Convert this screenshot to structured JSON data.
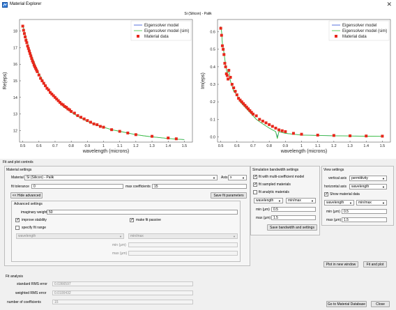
{
  "window": {
    "title": "Material Explorer",
    "close_glyph": "✕",
    "icon": "app-icon"
  },
  "figure": {
    "suptitle": "Si (Silicon) - Palik"
  },
  "chart_data": [
    {
      "type": "line",
      "title": "",
      "xlabel": "wavelength (microns)",
      "ylabel": "Re(eps)",
      "xlim": [
        0.48,
        1.55
      ],
      "ylim": [
        11.3,
        18.7
      ],
      "xticks": [
        "0.5",
        "0.6",
        "0.7",
        "0.8",
        "0.9",
        "1",
        "1.1",
        "1.2",
        "1.3",
        "1.4",
        "1.5"
      ],
      "yticks": [
        "12",
        "13",
        "14",
        "15",
        "16",
        "17",
        "18"
      ],
      "legend": [
        "Eigensolver model",
        "Eigensolver model (sim)",
        "Material data"
      ],
      "legend_position": "top-right",
      "series": [
        {
          "name": "Eigensolver model",
          "color": "#2a4fd6",
          "x": [
            0.5,
            0.52,
            0.54,
            0.56,
            0.58,
            0.6,
            0.63,
            0.66,
            0.7,
            0.75,
            0.8,
            0.85,
            0.9,
            0.95,
            1,
            1.05,
            1.1,
            1.15,
            1.2,
            1.25,
            1.3,
            1.35,
            1.4,
            1.45,
            1.5
          ],
          "y": [
            18.35,
            17.6,
            16.95,
            16.4,
            15.9,
            15.45,
            14.9,
            14.45,
            13.95,
            13.45,
            13.1,
            12.8,
            12.55,
            12.35,
            12.2,
            12.05,
            11.95,
            11.85,
            11.75,
            11.68,
            11.62,
            11.57,
            11.52,
            11.48,
            11.45
          ]
        },
        {
          "name": "Eigensolver model (sim)",
          "color": "#3fc43f",
          "x": [
            0.5,
            0.52,
            0.54,
            0.56,
            0.58,
            0.6,
            0.63,
            0.66,
            0.7,
            0.75,
            0.8,
            0.85,
            0.9,
            0.95,
            1,
            1.05,
            1.1,
            1.15,
            1.2,
            1.25,
            1.3,
            1.35,
            1.4,
            1.45,
            1.5
          ],
          "y": [
            18.35,
            17.6,
            16.95,
            16.4,
            15.9,
            15.45,
            14.9,
            14.45,
            13.95,
            13.45,
            13.1,
            12.8,
            12.55,
            12.35,
            12.2,
            12.05,
            11.95,
            11.85,
            11.75,
            11.68,
            11.62,
            11.57,
            11.52,
            11.48,
            11.45
          ]
        },
        {
          "name": "Material data",
          "color": "#e8271b",
          "marker": "square",
          "x": [
            0.5,
            0.505,
            0.51,
            0.515,
            0.52,
            0.525,
            0.53,
            0.535,
            0.54,
            0.545,
            0.55,
            0.555,
            0.56,
            0.565,
            0.57,
            0.575,
            0.58,
            0.585,
            0.59,
            0.6,
            0.61,
            0.62,
            0.63,
            0.64,
            0.65,
            0.66,
            0.67,
            0.68,
            0.69,
            0.7,
            0.71,
            0.72,
            0.73,
            0.74,
            0.75,
            0.76,
            0.77,
            0.78,
            0.79,
            0.8,
            0.82,
            0.84,
            0.86,
            0.88,
            0.9,
            0.92,
            0.94,
            0.96,
            0.98,
            1,
            1.05,
            1.1,
            1.15,
            1.2,
            1.3,
            1.4,
            1.45
          ],
          "y": [
            18.3,
            18.05,
            17.85,
            17.65,
            17.45,
            17.3,
            17.1,
            16.95,
            16.8,
            16.65,
            16.5,
            16.35,
            16.2,
            16.1,
            15.95,
            15.85,
            15.75,
            15.65,
            15.55,
            15.35,
            15.15,
            15,
            14.85,
            14.7,
            14.55,
            14.45,
            14.3,
            14.2,
            14.1,
            14,
            13.9,
            13.8,
            13.7,
            13.6,
            13.55,
            13.45,
            13.4,
            13.3,
            13.25,
            13.15,
            13.05,
            12.9,
            12.8,
            12.7,
            12.6,
            12.5,
            12.4,
            12.35,
            12.25,
            12.2,
            12.05,
            11.95,
            11.85,
            11.75,
            11.65,
            11.55,
            11.5
          ]
        }
      ]
    },
    {
      "type": "line",
      "title": "",
      "xlabel": "wavelength (microns)",
      "ylabel": "Im(eps)",
      "xlim": [
        0.48,
        1.55
      ],
      "ylim": [
        -0.03,
        0.67
      ],
      "xticks": [
        "0.5",
        "0.6",
        "0.7",
        "0.8",
        "0.9",
        "1",
        "1.1",
        "1.2",
        "1.3",
        "1.4",
        "1.5"
      ],
      "yticks": [
        "0.0",
        "0.1",
        "0.2",
        "0.3",
        "0.4",
        "0.5",
        "0.6"
      ],
      "legend": [
        "Eigensolver model",
        "Eigensolver model (sim)",
        "Material data"
      ],
      "legend_position": "top-right",
      "series": [
        {
          "name": "Eigensolver model",
          "color": "#2a4fd6",
          "x": [
            0.5,
            0.505,
            0.51,
            0.52,
            0.53,
            0.54,
            0.55,
            0.56,
            0.58,
            0.6,
            0.62,
            0.64,
            0.66,
            0.68,
            0.7,
            0.72,
            0.75,
            0.8,
            0.84,
            0.85,
            0.86,
            0.9,
            1,
            1.1,
            1.2,
            1.3,
            1.4,
            1.5
          ],
          "y": [
            0.63,
            0.6,
            0.53,
            0.48,
            0.41,
            0.36,
            0.38,
            0.32,
            0.26,
            0.24,
            0.2,
            0.18,
            0.16,
            0.14,
            0.12,
            0.1,
            0.08,
            0.05,
            0.03,
            0,
            0.03,
            0.02,
            0.01,
            0.008,
            0.006,
            0.005,
            0.004,
            0.003
          ]
        },
        {
          "name": "Eigensolver model (sim)",
          "color": "#3fc43f",
          "x": [
            0.5,
            0.505,
            0.51,
            0.52,
            0.53,
            0.54,
            0.55,
            0.56,
            0.58,
            0.6,
            0.62,
            0.64,
            0.66,
            0.68,
            0.7,
            0.72,
            0.75,
            0.8,
            0.84,
            0.85,
            0.86,
            0.9,
            1,
            1.1,
            1.2,
            1.3,
            1.4,
            1.5
          ],
          "y": [
            0.63,
            0.6,
            0.53,
            0.48,
            0.41,
            0.36,
            0.38,
            0.32,
            0.26,
            0.24,
            0.2,
            0.18,
            0.16,
            0.14,
            0.12,
            0.1,
            0.08,
            0.05,
            0.03,
            -0.01,
            0.03,
            0.02,
            0.01,
            0.008,
            0.006,
            0.005,
            0.004,
            0.003
          ]
        },
        {
          "name": "Material data",
          "color": "#e8271b",
          "marker": "square",
          "x": [
            0.5,
            0.505,
            0.51,
            0.515,
            0.52,
            0.525,
            0.53,
            0.535,
            0.54,
            0.545,
            0.55,
            0.56,
            0.57,
            0.58,
            0.59,
            0.6,
            0.61,
            0.62,
            0.63,
            0.64,
            0.65,
            0.66,
            0.67,
            0.68,
            0.69,
            0.7,
            0.72,
            0.74,
            0.76,
            0.78,
            0.8,
            0.82,
            0.84,
            0.86,
            0.88,
            0.9,
            0.95,
            1,
            1.1,
            1.2,
            1.3,
            1.4,
            1.5
          ],
          "y": [
            0.62,
            0.58,
            0.52,
            0.5,
            0.47,
            0.42,
            0.4,
            0.36,
            0.35,
            0.33,
            0.38,
            0.34,
            0.3,
            0.28,
            0.26,
            0.24,
            0.22,
            0.21,
            0.2,
            0.19,
            0.18,
            0.17,
            0.16,
            0.15,
            0.14,
            0.13,
            0.12,
            0.1,
            0.09,
            0.08,
            0.07,
            0.06,
            0.05,
            0.04,
            0.035,
            0.03,
            0.02,
            0.015,
            0.01,
            0.008,
            0.006,
            0.005,
            0.004
          ]
        }
      ]
    }
  ],
  "fit_controls": {
    "section_title": "Fit and plot controls",
    "material_settings": {
      "title": "Material settings",
      "material_label": "Material",
      "material_value": "Si (Silicon) - Palik",
      "axis_label": "Axis",
      "axis_value": "x",
      "fit_tolerance_label": "fit tolerance",
      "fit_tolerance_value": "0",
      "max_coefficients_label": "max coefficients",
      "max_coefficients_value": "15",
      "hide_advanced_button": "<< Hide advanced",
      "save_fit_button": "Save fit parameters"
    },
    "advanced_settings": {
      "title": "Advanced settings",
      "imaginary_weight_label": "imaginary weight",
      "imaginary_weight_value": "50",
      "improve_stability_label": "improve stability",
      "improve_stability_checked": true,
      "make_fit_passive_label": "make fit passive",
      "make_fit_passive_checked": true,
      "specify_fit_range_label": "specify fit range",
      "specify_fit_range_checked": false,
      "range_select_left": "wavelength",
      "range_select_right": "min/max",
      "min_label": "min (μm)",
      "max_label": "max (μm)"
    },
    "simulation_bandwidth": {
      "title": "Simulation bandwidth settings",
      "fit_multi_label": "fit with multi-coefficient model",
      "fit_multi_checked": true,
      "fit_sampled_label": "fit sampled materials",
      "fit_sampled_checked": true,
      "fit_analytic_label": "fit analytic materials",
      "fit_analytic_checked": false,
      "select_left": "wavelength",
      "select_right": "min/max",
      "min_label": "min (μm)",
      "min_value": "0.5",
      "max_label": "max (μm)",
      "max_value": "1.5",
      "save_button": "Save bandwidth and settings"
    },
    "view_settings": {
      "title": "View settings",
      "vertical_axis_label": "vertical axis",
      "vertical_axis_value": "permittivity",
      "horizontal_axis_label": "horizontal axis",
      "horizontal_axis_value": "wavelength",
      "show_material_label": "Show material data",
      "show_material_checked": true,
      "select_left": "wavelength",
      "select_right": "min/max",
      "min_label": "min (μm)",
      "min_value": "0.5",
      "max_label": "max (μm)",
      "max_value": "1.5"
    },
    "plot_new_window_button": "Plot in new window",
    "fit_and_plot_button": "Fit and plot"
  },
  "fit_analysis": {
    "title": "Fit analysis",
    "standard_rms_label": "standard RMS error",
    "standard_rms_value": "0.0366597",
    "weighted_rms_label": "weighted RMS error",
    "weighted_rms_value": "0.0100432",
    "num_coefficients_label": "number of coefficients",
    "num_coefficients_value": "15",
    "go_to_db_button": "Go to Material Database",
    "close_button": "Close"
  }
}
